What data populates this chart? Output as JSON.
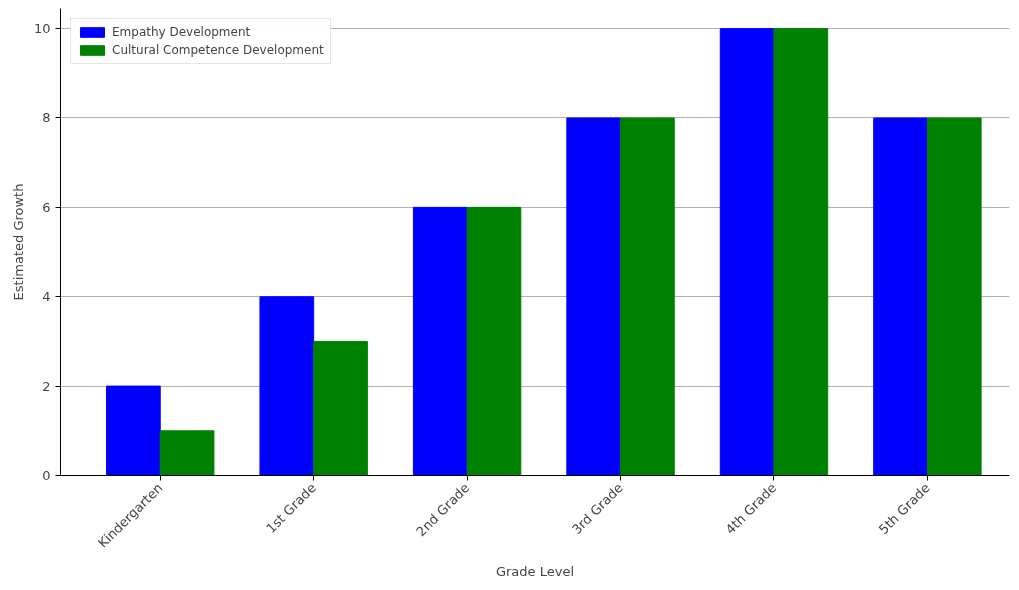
{
  "chart_data": {
    "type": "bar",
    "xlabel": "Grade Level",
    "ylabel": "Estimated Growth",
    "categories": [
      "Kindergarten",
      "1st Grade",
      "2nd Grade",
      "3rd Grade",
      "4th Grade",
      "5th Grade"
    ],
    "series": [
      {
        "name": "Empathy Development",
        "color": "#0000ff",
        "values": [
          2,
          4,
          6,
          8,
          10,
          8
        ]
      },
      {
        "name": "Cultural Competence Development",
        "color": "#008000",
        "values": [
          1,
          3,
          6,
          8,
          10,
          8
        ]
      }
    ],
    "ylim": [
      0,
      10.45
    ],
    "yticks": [
      0,
      2,
      4,
      6,
      8,
      10
    ],
    "grid": "y",
    "legend": "top left"
  }
}
